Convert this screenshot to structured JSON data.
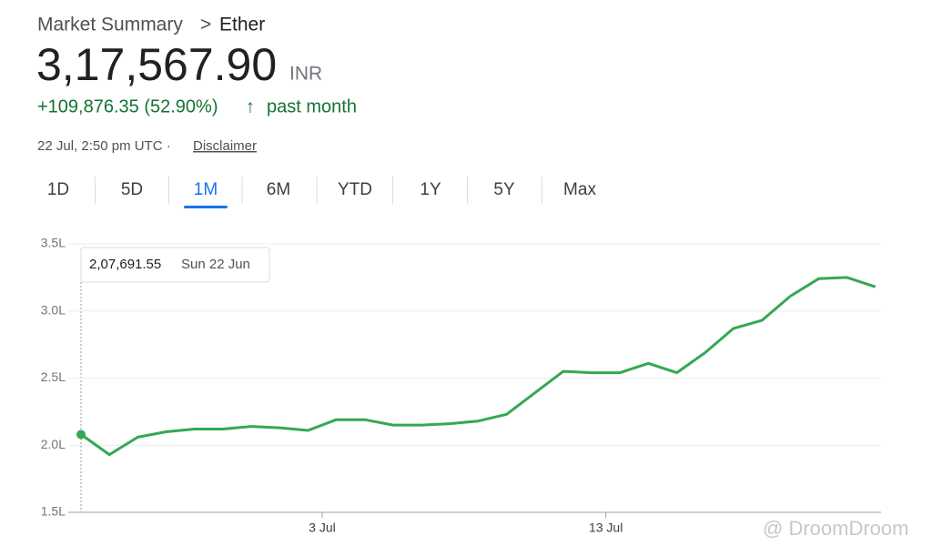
{
  "header": {
    "breadcrumb": "Market Summary",
    "separator": ">",
    "asset": "Ether",
    "price": "3,17,567.90",
    "currency": "INR",
    "change": "+109,876.35 (52.90%)",
    "arrow": "↑",
    "period": "past month",
    "timestamp": "22 Jul, 2:50 pm UTC ·",
    "disclaimer": "Disclaimer"
  },
  "tabs": [
    "1D",
    "5D",
    "1M",
    "6M",
    "YTD",
    "1Y",
    "5Y",
    "Max"
  ],
  "active_tab": 2,
  "watermark": "@ DroomDroom",
  "chart_data": {
    "type": "line",
    "color": "#34a853",
    "x": [
      0,
      1,
      2,
      3,
      4,
      5,
      6,
      7,
      8,
      9,
      10,
      11,
      12,
      13,
      14,
      15,
      16,
      17,
      18,
      19,
      20,
      21,
      22,
      23,
      24,
      25,
      26,
      27,
      28
    ],
    "values": [
      2.08,
      1.93,
      2.06,
      2.1,
      2.12,
      2.12,
      2.14,
      2.13,
      2.11,
      2.19,
      2.19,
      2.15,
      2.15,
      2.16,
      2.18,
      2.23,
      2.39,
      2.55,
      2.54,
      2.54,
      2.61,
      2.54,
      2.69,
      2.87,
      2.93,
      3.11,
      3.24,
      3.25,
      3.18
    ],
    "xlim": [
      -0.45,
      28.2
    ],
    "xticks": [
      {
        "value": 8.5,
        "label": "3 Jul"
      },
      {
        "value": 18.5,
        "label": "13 Jul"
      }
    ],
    "ylim": [
      1.5,
      3.5
    ],
    "yticks": [
      {
        "value": 1.5,
        "label": "1.5L"
      },
      {
        "value": 2.0,
        "label": "2.0L"
      },
      {
        "value": 2.5,
        "label": "2.5L"
      },
      {
        "value": 3.0,
        "label": "3.0L"
      },
      {
        "value": 3.5,
        "label": "3.5L"
      }
    ],
    "grid": true,
    "tooltip": {
      "value": "2,07,691.55",
      "date": "Sun 22 Jun"
    }
  }
}
